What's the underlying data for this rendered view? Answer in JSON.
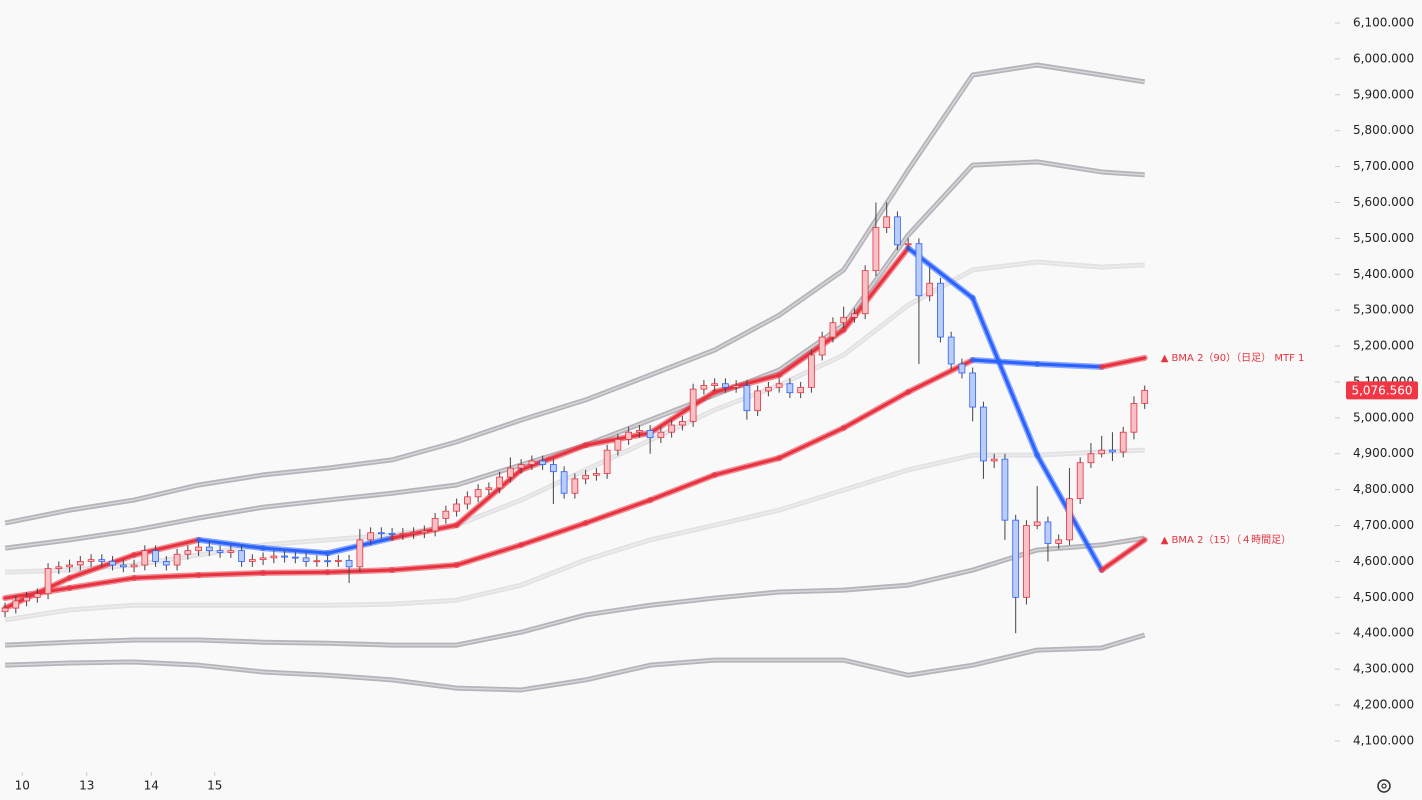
{
  "chart_data": {
    "type": "candlestick",
    "xlim": [
      -0.47,
      123.7
    ],
    "ylim": [
      4019,
      6164
    ],
    "yticks": [
      {
        "value": 4100,
        "label": "4,100.000"
      },
      {
        "value": 4200,
        "label": "4,200.000"
      },
      {
        "value": 4300,
        "label": "4,300.000"
      },
      {
        "value": 4400,
        "label": "4,400.000"
      },
      {
        "value": 4500,
        "label": "4,500.000"
      },
      {
        "value": 4600,
        "label": "4,600.000"
      },
      {
        "value": 4700,
        "label": "4,700.000"
      },
      {
        "value": 4800,
        "label": "4,800.000"
      },
      {
        "value": 4900,
        "label": "4,900.000"
      },
      {
        "value": 5000,
        "label": "5,000.000"
      },
      {
        "value": 5100,
        "label": "5,100.000"
      },
      {
        "value": 5200,
        "label": "5,200.000"
      },
      {
        "value": 5300,
        "label": "5,300.000"
      },
      {
        "value": 5400,
        "label": "5,400.000"
      },
      {
        "value": 5500,
        "label": "5,500.000"
      },
      {
        "value": 5600,
        "label": "5,600.000"
      },
      {
        "value": 5700,
        "label": "5,700.000"
      },
      {
        "value": 5800,
        "label": "5,800.000"
      },
      {
        "value": 5900,
        "label": "5,900.000"
      },
      {
        "value": 6000,
        "label": "6,000.000"
      },
      {
        "value": 6100,
        "label": "6,100.000"
      }
    ],
    "xticks": [
      {
        "value": 1.6,
        "label": "10"
      },
      {
        "value": 7.6,
        "label": "13"
      },
      {
        "value": 13.6,
        "label": "14"
      },
      {
        "value": 19.5,
        "label": "15"
      }
    ],
    "up_color": "#e8323f",
    "down_color": "#2962ff",
    "open": [
      4460,
      4470,
      4490,
      4500,
      4510,
      4580,
      4585,
      4590,
      4600,
      4605,
      4600,
      4590,
      4585,
      4590,
      4630,
      4600,
      4590,
      4620,
      4630,
      4640,
      4630,
      4625,
      4630,
      4600,
      4605,
      4610,
      4615,
      4612,
      4610,
      4600,
      4602,
      4600,
      4603,
      4585,
      4660,
      4680,
      4678,
      4675,
      4678,
      4680,
      4685,
      4720,
      4740,
      4760,
      4780,
      4800,
      4805,
      4835,
      4860,
      4870,
      4880,
      4870,
      4850,
      4790,
      4830,
      4840,
      4845,
      4910,
      4940,
      4960,
      4965,
      4945,
      4960,
      4980,
      4990,
      5080,
      5090,
      5095,
      5085,
      5090,
      5020,
      5075,
      5085,
      5095,
      5070,
      5085,
      5175,
      5225,
      5265,
      5280,
      5290,
      5410,
      5530,
      5560,
      5482,
      5485,
      5340,
      5375,
      5225,
      5150,
      5125,
      5030,
      4880,
      4885,
      4715,
      4500,
      4700,
      4710,
      4650,
      4660,
      4775,
      4875,
      4900,
      4910,
      4905,
      4960,
      5040
    ],
    "close": [
      4470,
      4490,
      4500,
      4510,
      4580,
      4585,
      4590,
      4600,
      4605,
      4600,
      4590,
      4585,
      4590,
      4630,
      4600,
      4590,
      4620,
      4630,
      4640,
      4630,
      4625,
      4630,
      4600,
      4605,
      4610,
      4615,
      4612,
      4610,
      4600,
      4602,
      4600,
      4603,
      4585,
      4660,
      4680,
      4678,
      4675,
      4678,
      4680,
      4685,
      4720,
      4740,
      4760,
      4780,
      4800,
      4805,
      4835,
      4860,
      4870,
      4880,
      4870,
      4850,
      4790,
      4830,
      4840,
      4845,
      4910,
      4940,
      4960,
      4965,
      4945,
      4960,
      4980,
      4990,
      5080,
      5090,
      5095,
      5085,
      5090,
      5020,
      5075,
      5085,
      5095,
      5070,
      5085,
      5175,
      5225,
      5265,
      5280,
      5290,
      5410,
      5530,
      5560,
      5482,
      5485,
      5340,
      5375,
      5225,
      5150,
      5125,
      5030,
      4880,
      4885,
      4715,
      4500,
      4700,
      4710,
      4650,
      4660,
      4775,
      4875,
      4900,
      4910,
      4905,
      4960,
      5040,
      5076.56
    ],
    "high": [
      4485,
      4505,
      4515,
      4525,
      4595,
      4600,
      4605,
      4615,
      4620,
      4620,
      4615,
      4605,
      4605,
      4645,
      4645,
      4615,
      4635,
      4645,
      4655,
      4655,
      4645,
      4645,
      4645,
      4620,
      4625,
      4630,
      4630,
      4627,
      4625,
      4617,
      4617,
      4618,
      4618,
      4690,
      4695,
      4695,
      4693,
      4693,
      4695,
      4700,
      4735,
      4755,
      4775,
      4795,
      4815,
      4820,
      4850,
      4890,
      4885,
      4895,
      4895,
      4885,
      4865,
      4845,
      4855,
      4860,
      4925,
      4955,
      4975,
      4980,
      4980,
      4975,
      4995,
      5005,
      5095,
      5105,
      5110,
      5110,
      5105,
      5105,
      5090,
      5100,
      5110,
      5110,
      5100,
      5190,
      5240,
      5280,
      5310,
      5305,
      5425,
      5600,
      5600,
      5575,
      5500,
      5500,
      5420,
      5390,
      5240,
      5165,
      5140,
      5045,
      4900,
      4900,
      4730,
      4715,
      4810,
      4725,
      4675,
      4860,
      4890,
      4930,
      4950,
      4960,
      4975,
      5060,
      5090
    ],
    "low": [
      4445,
      4455,
      4475,
      4485,
      4495,
      4565,
      4570,
      4575,
      4585,
      4585,
      4575,
      4570,
      4570,
      4575,
      4585,
      4575,
      4575,
      4605,
      4615,
      4615,
      4610,
      4610,
      4585,
      4585,
      4590,
      4595,
      4597,
      4595,
      4585,
      4585,
      4585,
      4585,
      4540,
      4570,
      4645,
      4663,
      4660,
      4660,
      4663,
      4665,
      4670,
      4705,
      4725,
      4745,
      4765,
      4785,
      4790,
      4820,
      4845,
      4855,
      4855,
      4760,
      4775,
      4775,
      4815,
      4825,
      4830,
      4895,
      4925,
      4945,
      4900,
      4930,
      4945,
      4965,
      4975,
      5065,
      5075,
      5070,
      5070,
      4995,
      5005,
      5060,
      5070,
      5055,
      5055,
      5070,
      5160,
      5210,
      5250,
      5265,
      5275,
      5395,
      5515,
      5467,
      5467,
      5150,
      5325,
      5210,
      5135,
      5110,
      4990,
      4830,
      4860,
      4660,
      4400,
      4480,
      4690,
      4600,
      4635,
      4645,
      4760,
      4860,
      4890,
      4880,
      4890,
      4940,
      5025
    ],
    "last_price": {
      "value": 5076.56,
      "label": "5,076.560"
    },
    "line_x": [
      0,
      6,
      12,
      18,
      24,
      30,
      36,
      42,
      48,
      54,
      60,
      66,
      72,
      78,
      84,
      90,
      96,
      102,
      106
    ],
    "lines": [
      {
        "color": "#b4b4ba",
        "inner": "#d6d6da",
        "values": [
          4707,
          4743,
          4771,
          4813,
          4841,
          4860,
          4883,
          4933,
          4994,
          5050,
          5119,
          5189,
          5286,
          5412,
          5690,
          5955,
          5983,
          5955,
          5936
        ]
      },
      {
        "color": "#b4b4ba",
        "inner": "#d6d6da",
        "values": [
          4637,
          4660,
          4687,
          4721,
          4751,
          4771,
          4790,
          4813,
          4869,
          4924,
          4994,
          5064,
          5133,
          5259,
          5509,
          5704,
          5713,
          5685,
          5677
        ]
      },
      {
        "color": "#e2e2e4",
        "inner": "#ececee",
        "values": [
          4570,
          4576,
          4590,
          4618,
          4646,
          4660,
          4674,
          4701,
          4771,
          4855,
          4938,
          5022,
          5091,
          5175,
          5314,
          5412,
          5434,
          5420,
          5426
        ]
      },
      {
        "color": "#e2e2e4",
        "inner": "#ececee",
        "values": [
          4437,
          4465,
          4478,
          4478,
          4478,
          4478,
          4481,
          4492,
          4534,
          4604,
          4660,
          4701,
          4743,
          4799,
          4855,
          4896,
          4896,
          4905,
          4910
        ]
      },
      {
        "color": "#b4b4ba",
        "inner": "#d6d6da",
        "values": [
          4367,
          4375,
          4381,
          4381,
          4375,
          4372,
          4367,
          4367,
          4403,
          4451,
          4478,
          4498,
          4515,
          4520,
          4534,
          4576,
          4632,
          4646,
          4665
        ]
      },
      {
        "color": "#b4b4ba",
        "inner": "#d6d6da",
        "values": [
          4311,
          4317,
          4320,
          4311,
          4292,
          4283,
          4270,
          4247,
          4242,
          4270,
          4311,
          4325,
          4325,
          4325,
          4283,
          4311,
          4353,
          4359,
          4395
        ]
      },
      {
        "name": "▲ BMA 2（90）（日足） MTF 1",
        "values": [
          4498,
          4526,
          4554,
          4562,
          4568,
          4570,
          4576,
          4590,
          4646,
          4707,
          4771,
          4841,
          4888,
          4972,
          5072,
          5161,
          5150,
          5142,
          5167
        ],
        "segment_colors": [
          "#e8323f",
          "#e8323f",
          "#e8323f",
          "#e8323f",
          "#e8323f",
          "#e8323f",
          "#e8323f",
          "#e8323f",
          "#e8323f",
          "#e8323f",
          "#e8323f",
          "#e8323f",
          "#e8323f",
          "#e8323f",
          "#e8323f",
          "#2962ff",
          "#2962ff",
          "#e8323f"
        ]
      },
      {
        "name": "▲ BMA 2（15）（４時間足）",
        "values": [
          4470,
          4554,
          4618,
          4660,
          4637,
          4623,
          4665,
          4701,
          4855,
          4924,
          4958,
          5072,
          5119,
          5245,
          5473,
          5334,
          4896,
          4576,
          4660
        ],
        "segment_colors": [
          "#e8323f",
          "#e8323f",
          "#e8323f",
          "#2962ff",
          "#2962ff",
          "#2962ff",
          "#e8323f",
          "#e8323f",
          "#e8323f",
          "#e8323f",
          "#e8323f",
          "#e8323f",
          "#e8323f",
          "#e8323f",
          "#2962ff",
          "#2962ff",
          "#2962ff",
          "#e8323f"
        ]
      }
    ]
  }
}
